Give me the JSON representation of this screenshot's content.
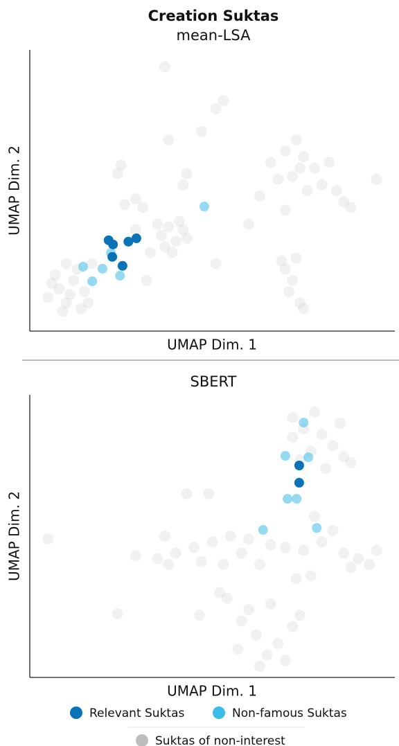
{
  "title": "Creation Suktas",
  "chart_data": [
    {
      "type": "scatter",
      "title": "mean-LSA",
      "x_label": "UMAP Dim. 1",
      "y_label": "UMAP Dim. 2",
      "xlim": [
        0,
        100
      ],
      "ylim": [
        0,
        100
      ],
      "series": [
        {
          "name": "Suktas of non-interest",
          "color": "#bdbdbd",
          "x": [
            5,
            8,
            10,
            12,
            14,
            7,
            11,
            15,
            9,
            13,
            6,
            16,
            17,
            10,
            36,
            38,
            40,
            42,
            37,
            41,
            39,
            43,
            35,
            26,
            29,
            31,
            25,
            24,
            37,
            53,
            51,
            47,
            38,
            43,
            42,
            66,
            70,
            73,
            75,
            78,
            72,
            80,
            84,
            86,
            76,
            68,
            82,
            74,
            88,
            95,
            63,
            70,
            70,
            72,
            74,
            71,
            75,
            69,
            73,
            51,
            60,
            32,
            29,
            33
          ],
          "values": [
            12,
            15,
            10,
            18,
            8,
            20,
            13,
            14,
            7,
            22,
            17,
            10,
            24,
            24,
            34,
            37,
            32,
            36,
            30,
            39,
            28,
            33,
            38,
            45,
            47,
            44,
            59,
            56,
            94,
            82,
            79,
            71,
            68,
            56,
            52,
            60,
            64,
            68,
            62,
            58,
            55,
            52,
            50,
            46,
            50,
            54,
            60,
            58,
            44,
            54,
            48,
            43,
            22,
            18,
            10,
            14,
            8,
            25,
            26,
            24,
            38,
            18,
            36,
            28
          ]
        },
        {
          "name": "Non-famous Suktas",
          "color": "#3bbbe8",
          "x": [
            14.6,
            17.1,
            19.9,
            24.7,
            47.8,
            22.2
          ],
          "values": [
            22.9,
            17.7,
            22.2,
            19.7,
            44.3,
            27.8
          ]
        },
        {
          "name": "Relevant Suktas",
          "color": "#0a72b6",
          "x": [
            21.6,
            22.8,
            27,
            29.2,
            22.6,
            25.4
          ],
          "values": [
            32.3,
            30.8,
            31.8,
            33,
            26.4,
            23.2
          ]
        }
      ]
    },
    {
      "type": "scatter",
      "title": "SBERT",
      "x_label": "UMAP Dim. 1",
      "y_label": "UMAP Dim. 2",
      "xlim": [
        0,
        100
      ],
      "ylim": [
        0,
        100
      ],
      "series": [
        {
          "name": "Suktas of non-interest",
          "color": "#bdbdbd",
          "x": [
            72,
            75,
            78,
            80,
            83,
            86,
            77,
            72,
            85,
            81,
            74,
            88,
            5,
            49,
            43,
            35,
            40,
            45,
            50,
            55,
            60,
            66,
            70,
            75,
            80,
            47,
            53,
            58,
            38,
            63,
            86,
            90,
            93,
            88,
            95,
            58,
            62,
            65,
            68,
            72,
            60,
            66,
            74,
            63,
            57,
            70,
            24,
            29,
            37,
            46.5,
            52,
            54,
            77,
            73,
            83,
            78
          ],
          "values": [
            92,
            88,
            94,
            86,
            82,
            78,
            80,
            85,
            90,
            74,
            77,
            76,
            49,
            65,
            65,
            42,
            44,
            46,
            48,
            50,
            49,
            47,
            46,
            45,
            48,
            41,
            40,
            44,
            40,
            40,
            44,
            42,
            40,
            39,
            45,
            20,
            15,
            8,
            12,
            18,
            24,
            26,
            22,
            4,
            10,
            6,
            22.5,
            43,
            50,
            22,
            30,
            28,
            36,
            35,
            52,
            57
          ]
        },
        {
          "name": "Non-famous Suktas",
          "color": "#3bbbe8",
          "x": [
            70,
            76.3,
            75,
            70.6,
            73.1,
            63.9,
            78.6
          ],
          "values": [
            78.4,
            77.9,
            90.2,
            63.2,
            63.2,
            52.2,
            52.9
          ]
        },
        {
          "name": "Relevant Suktas",
          "color": "#0a72b6",
          "x": [
            73.8,
            73.8
          ],
          "values": [
            75,
            68.9
          ]
        }
      ]
    }
  ]
}
